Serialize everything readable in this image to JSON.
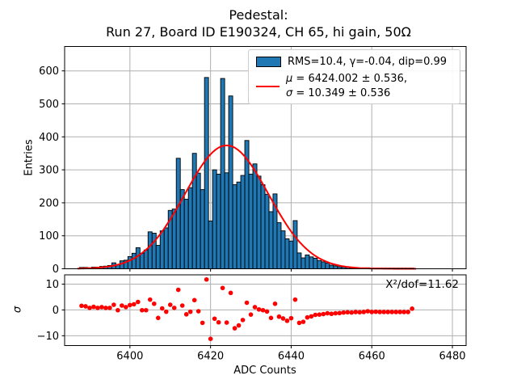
{
  "title": {
    "line1": "Pedestal:",
    "line2": "Run 27, Board ID E190324, CH 65, hi gain, 50Ω"
  },
  "axes": {
    "x_label": "ADC Counts",
    "y_label_main": "Entries",
    "y_label_resid": "σ"
  },
  "legend": {
    "hist_label": "RMS=10.4, γ=-0.04, dip=0.99",
    "fit_mu_symbol": "μ",
    "fit_mu_text": " = 6424.002 ± 0.536,",
    "fit_sigma_symbol": "σ",
    "fit_sigma_text": " = 10.349 ± 0.536"
  },
  "annotation": {
    "chi2": "X²/dof=11.62"
  },
  "colors": {
    "bar_fill": "#1f77b4",
    "bar_edge": "#000000",
    "fit_line": "#ff0000",
    "residual_dots": "#ff0000",
    "grid": "#b0b0b0",
    "spine": "#000000"
  },
  "chart_data": [
    {
      "type": "bar",
      "subtype": "histogram",
      "title": "Pedestal: Run 27, Board ID E190324, CH 65, hi gain, 50Ω",
      "xlabel": "ADC Counts",
      "ylabel": "Entries",
      "xlim": [
        6383.8,
        6483.4
      ],
      "ylim": [
        0,
        674
      ],
      "xticks": [
        6400,
        6420,
        6440,
        6460,
        6480
      ],
      "yticks": [
        0,
        100,
        200,
        300,
        400,
        500,
        600
      ],
      "grid": true,
      "legend_position": "upper right",
      "bin_start": 6388,
      "bin_width": 1,
      "counts": [
        4,
        4,
        3,
        5,
        5,
        7,
        8,
        10,
        18,
        12,
        24,
        26,
        37,
        47,
        64,
        47,
        57,
        112,
        108,
        71,
        115,
        124,
        177,
        181,
        335,
        240,
        211,
        246,
        350,
        290,
        240,
        580,
        145,
        300,
        287,
        577,
        291,
        524,
        255,
        263,
        283,
        389,
        287,
        318,
        281,
        255,
        226,
        173,
        227,
        140,
        115,
        91,
        84,
        146,
        48,
        33,
        42,
        36,
        32,
        25,
        21,
        17,
        11,
        9,
        6,
        5,
        4,
        3,
        3,
        2,
        2,
        3,
        2,
        2,
        2,
        2,
        2,
        2,
        2,
        2,
        2,
        2,
        2
      ],
      "fit": {
        "type": "gaussian",
        "amplitude": 374,
        "mean": 6424.002,
        "mean_err": 0.536,
        "sigma": 10.349,
        "sigma_err": 0.536,
        "rms": 10.4,
        "gamma": -0.04,
        "dip": 0.99,
        "range": [
          6387,
          6471
        ]
      }
    },
    {
      "type": "scatter",
      "subtype": "fit-residuals",
      "ylabel": "σ",
      "ylim": [
        -13.8,
        13.6
      ],
      "yticks": [
        -10,
        0,
        10
      ],
      "ytick_labels": [
        "−10",
        "0",
        "10"
      ],
      "grid": true,
      "chi2_per_dof": 11.62,
      "x_from": "histogram bin centers",
      "values": [
        1.6,
        1.4,
        0.8,
        1.2,
        0.8,
        1.1,
        0.8,
        0.8,
        2.0,
        -0.1,
        1.7,
        1.1,
        1.9,
        2.2,
        3.1,
        -0.1,
        -0.1,
        4.0,
        2.4,
        -3.1,
        0.6,
        -0.7,
        2.0,
        0.8,
        7.8,
        1.7,
        -1.7,
        -0.7,
        3.8,
        -0.5,
        -5.0,
        11.8,
        -11.2,
        -3.4,
        -4.8,
        8.5,
        -4.9,
        6.6,
        -7.1,
        -6.0,
        -3.9,
        2.8,
        -1.8,
        1.1,
        0.2,
        -0.1,
        -0.6,
        -3.1,
        2.4,
        -2.6,
        -3.3,
        -4.2,
        -3.2,
        4.0,
        -5.0,
        -4.6,
        -2.9,
        -2.5,
        -1.9,
        -1.8,
        -1.6,
        -1.3,
        -1.5,
        -1.3,
        -1.2,
        -1.0,
        -0.9,
        -1.0,
        -0.8,
        -0.9,
        -0.8,
        -0.5,
        -0.8,
        -0.7,
        -0.8,
        -0.8,
        -0.8,
        -0.8,
        -0.8,
        -0.8,
        -0.8,
        -0.8,
        0.5
      ]
    }
  ]
}
